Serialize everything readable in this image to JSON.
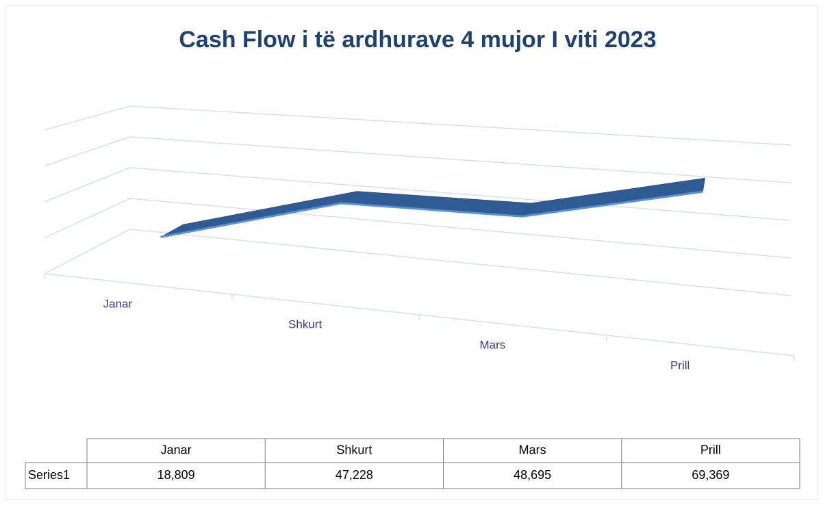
{
  "chart_data": {
    "type": "line3d",
    "title": "Cash Flow i të ardhurave 4 mujor I viti 2023",
    "categories": [
      "Janar",
      "Shkurt",
      "Mars",
      "Prill"
    ],
    "series": [
      {
        "name": "Series1",
        "color": "#2f5b94",
        "values": [
          18809,
          47228,
          48695,
          69369
        ],
        "value_labels": [
          "18,809",
          "47,228",
          "48,695",
          "69,369"
        ]
      }
    ],
    "ylim": [
      0,
      80000
    ],
    "yticks": [
      0,
      20000,
      40000,
      60000,
      80000
    ],
    "grid": true
  }
}
